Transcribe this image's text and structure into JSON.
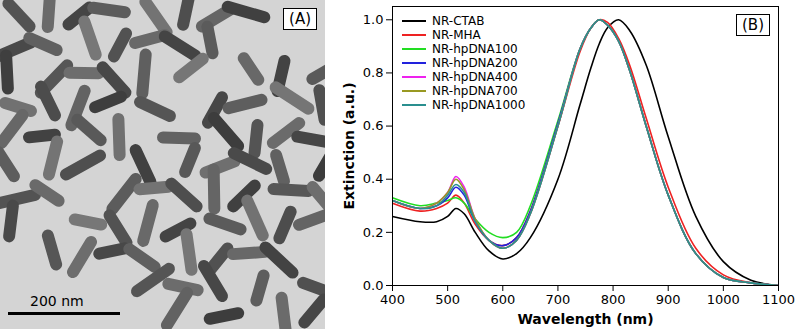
{
  "image_panel": {
    "label": "(A)",
    "scale_bar": "200 nm"
  },
  "chart_data": {
    "type": "line",
    "panel_label": "(B)",
    "x_label": "Wavelength (nm)",
    "y_label": "Extinction (a.u.)",
    "x": [
      400,
      450,
      480,
      500,
      515,
      530,
      550,
      575,
      600,
      625,
      650,
      700,
      740,
      760,
      775,
      790,
      810,
      830,
      860,
      900,
      950,
      1000,
      1050,
      1100
    ],
    "series": [
      {
        "name": "NR-CTAB",
        "color": "#000000",
        "values": [
          0.26,
          0.24,
          0.24,
          0.26,
          0.29,
          0.27,
          0.2,
          0.13,
          0.1,
          0.12,
          0.18,
          0.4,
          0.68,
          0.82,
          0.91,
          0.97,
          1.0,
          0.96,
          0.83,
          0.56,
          0.26,
          0.09,
          0.02,
          0.0
        ]
      },
      {
        "name": "NR-MHA",
        "color": "#ee2222",
        "values": [
          0.31,
          0.28,
          0.29,
          0.31,
          0.34,
          0.31,
          0.23,
          0.17,
          0.15,
          0.18,
          0.28,
          0.6,
          0.88,
          0.97,
          1.0,
          0.99,
          0.93,
          0.83,
          0.63,
          0.37,
          0.14,
          0.04,
          0.01,
          0.0
        ]
      },
      {
        "name": "NR-hpDNA100",
        "color": "#22dd22",
        "values": [
          0.33,
          0.3,
          0.31,
          0.32,
          0.33,
          0.31,
          0.25,
          0.2,
          0.18,
          0.2,
          0.3,
          0.62,
          0.89,
          0.97,
          1.0,
          0.98,
          0.92,
          0.81,
          0.6,
          0.34,
          0.12,
          0.03,
          0.01,
          0.0
        ]
      },
      {
        "name": "NR-hpDNA200",
        "color": "#2222dd",
        "values": [
          0.32,
          0.29,
          0.3,
          0.33,
          0.37,
          0.34,
          0.24,
          0.17,
          0.15,
          0.18,
          0.28,
          0.61,
          0.89,
          0.97,
          1.0,
          0.98,
          0.92,
          0.81,
          0.6,
          0.34,
          0.12,
          0.03,
          0.01,
          0.0
        ]
      },
      {
        "name": "NR-hpDNA400",
        "color": "#ee22ee",
        "values": [
          0.32,
          0.29,
          0.31,
          0.35,
          0.41,
          0.37,
          0.25,
          0.17,
          0.14,
          0.17,
          0.27,
          0.6,
          0.89,
          0.97,
          1.0,
          0.98,
          0.92,
          0.81,
          0.6,
          0.34,
          0.12,
          0.03,
          0.01,
          0.0
        ]
      },
      {
        "name": "NR-hpDNA700",
        "color": "#999922",
        "values": [
          0.32,
          0.29,
          0.31,
          0.35,
          0.4,
          0.36,
          0.25,
          0.17,
          0.14,
          0.17,
          0.27,
          0.6,
          0.89,
          0.97,
          1.0,
          0.98,
          0.92,
          0.81,
          0.6,
          0.34,
          0.12,
          0.03,
          0.01,
          0.0
        ]
      },
      {
        "name": "NR-hpDNA1000",
        "color": "#2a8f8f",
        "values": [
          0.32,
          0.29,
          0.3,
          0.34,
          0.38,
          0.35,
          0.24,
          0.17,
          0.14,
          0.17,
          0.27,
          0.6,
          0.89,
          0.97,
          1.0,
          0.98,
          0.92,
          0.81,
          0.6,
          0.34,
          0.12,
          0.03,
          0.01,
          0.0
        ]
      }
    ],
    "xlim": [
      400,
      1100
    ],
    "xticks": [
      400,
      500,
      600,
      700,
      800,
      900,
      1000,
      1100
    ],
    "ylim": [
      0,
      1.05
    ],
    "yticks": [
      {
        "value": 0,
        "label": "0.0"
      },
      0.2,
      0.4,
      0.6,
      0.8,
      {
        "value": 1,
        "label": "1.0"
      }
    ],
    "grid": false,
    "legend": "top-left"
  }
}
